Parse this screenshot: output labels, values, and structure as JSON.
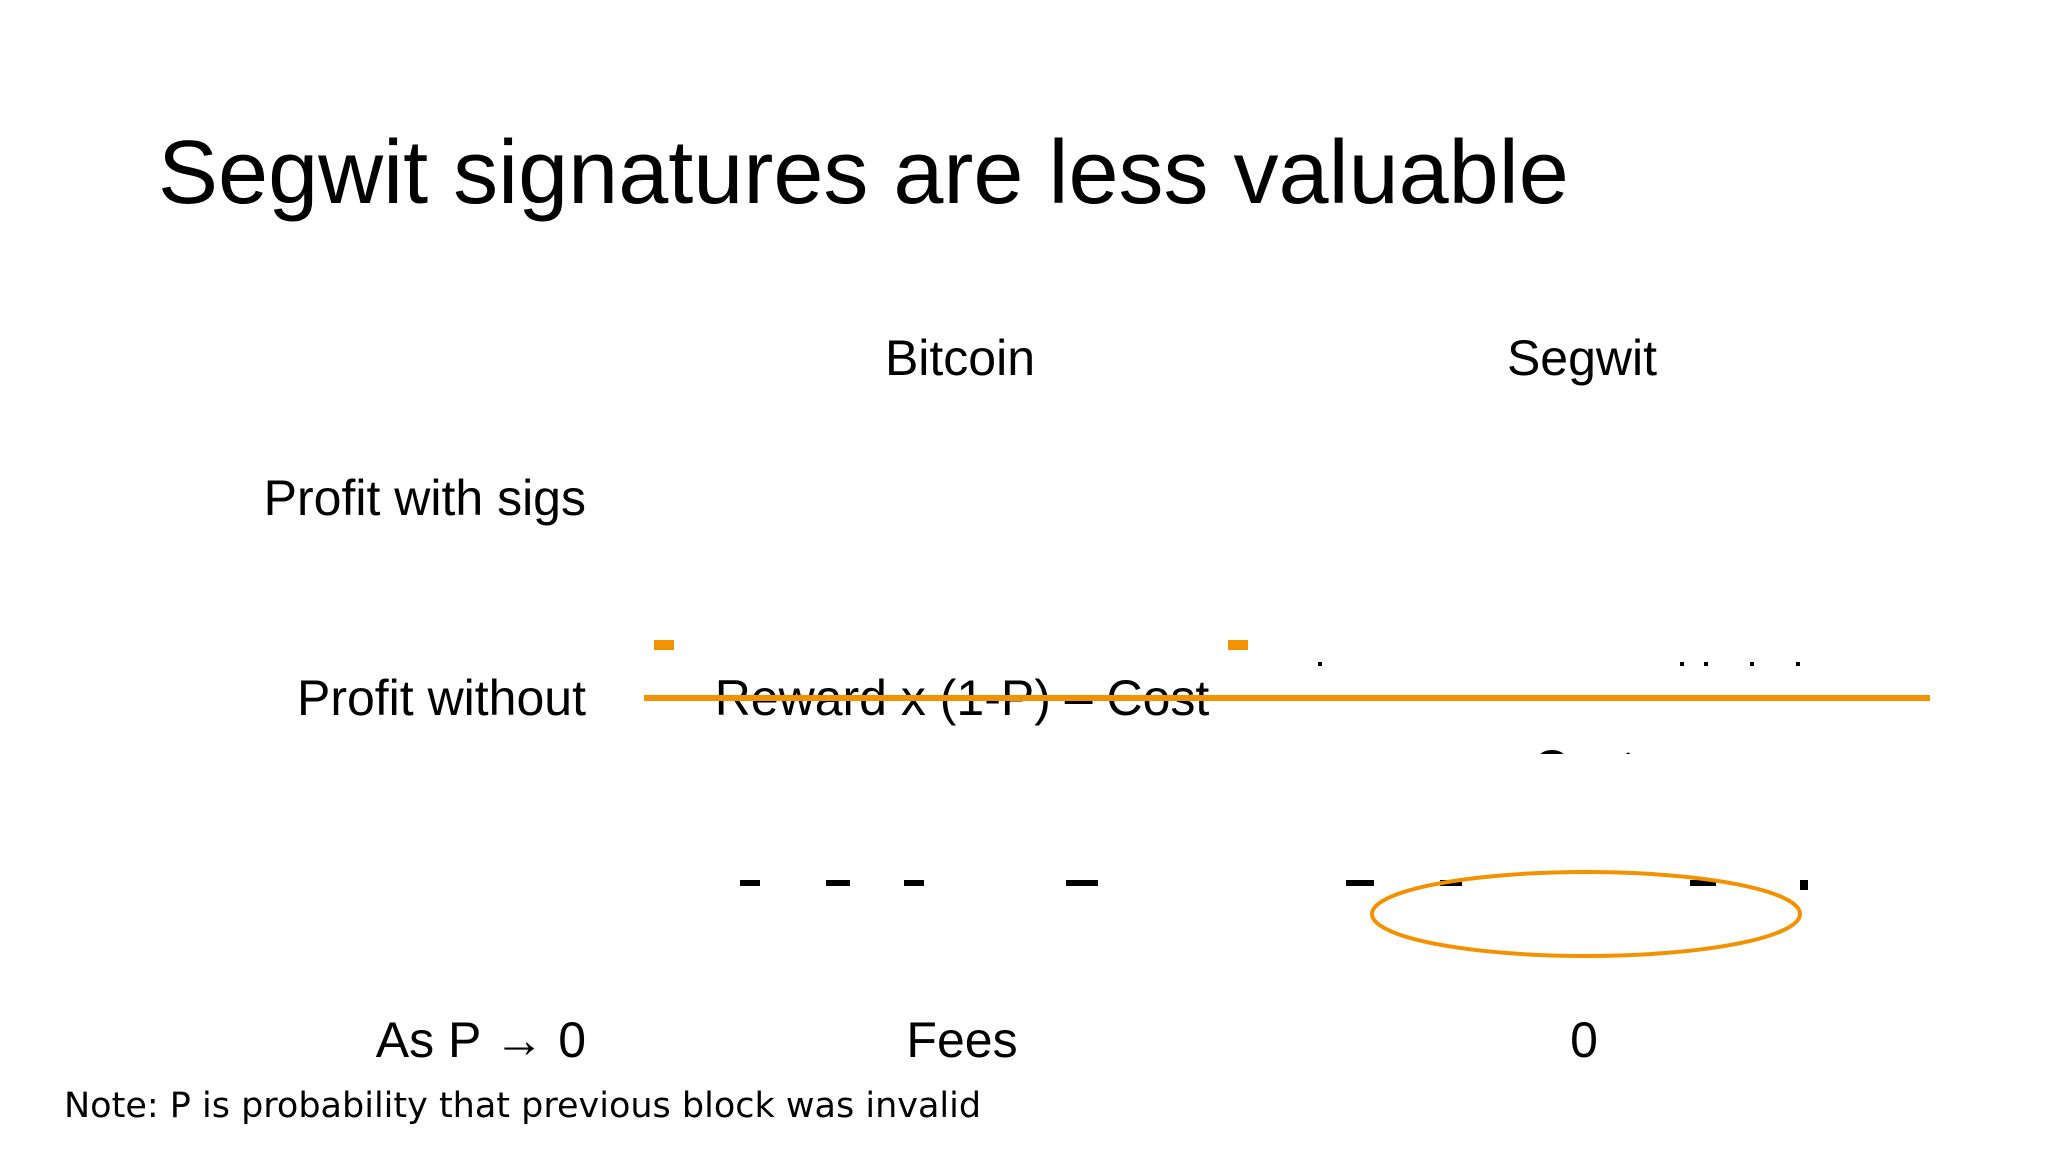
{
  "slide": {
    "title": "Segwit signatures are less valuable",
    "columns": {
      "bitcoin": "Bitcoin",
      "segwit": "Segwit"
    },
    "rows": {
      "profit_with_sigs": {
        "label": "Profit with sigs"
      },
      "profit_without": {
        "label": "Profit without",
        "bitcoin": "Reward x (1-P) – Cost",
        "segwit_cost": "Cost"
      },
      "limit": {
        "label": "As P → 0",
        "bitcoin": "Fees",
        "segwit": "0"
      }
    },
    "note": "Note: P is probability that previous block was invalid"
  },
  "colors": {
    "accent": "#F39200",
    "text": "#000000",
    "background": "#FFFFFF"
  }
}
